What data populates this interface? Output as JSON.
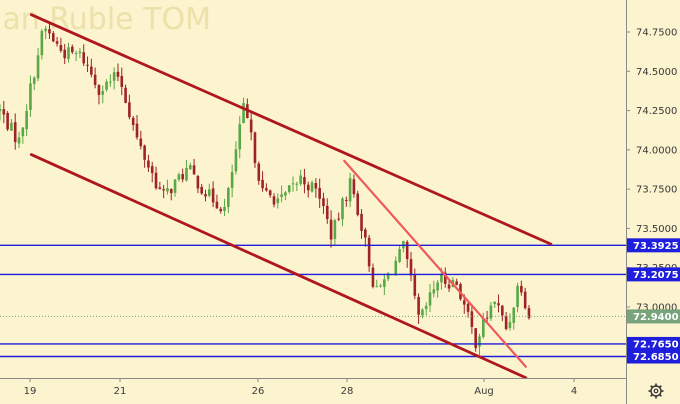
{
  "watermark": "ian Ruble TOM",
  "settings_icon": "gear-icon",
  "colors": {
    "background": "#fcf3cf",
    "candle_up": "#5aa845",
    "candle_down": "#9e2327",
    "channel": "#b0171d",
    "trendline": "#ee5a5a",
    "level": "#1e1edc",
    "current_price": "#78a47c"
  },
  "chart_data": {
    "type": "candlestick",
    "x_ticks": [
      "19",
      "21",
      "26",
      "28",
      "Aug",
      "4"
    ],
    "y_ticks": [
      "74.7500",
      "74.5000",
      "74.2500",
      "74.0000",
      "73.7500",
      "73.5000",
      "73.2500",
      "73.0000"
    ],
    "ylim": [
      72.52,
      74.95
    ],
    "grid": false,
    "horizontal_levels": [
      {
        "label": "73.3925",
        "value": 73.3925
      },
      {
        "label": "73.2075",
        "value": 73.2075
      },
      {
        "label": "72.7650",
        "value": 72.765
      },
      {
        "label": "72.6850",
        "value": 72.685
      }
    ],
    "current_price": {
      "label": "72.9400",
      "value": 72.94
    },
    "lines": [
      {
        "name": "channel-upper",
        "points": [
          [
            0.05,
            74.86
          ],
          [
            0.88,
            73.4
          ]
        ]
      },
      {
        "name": "channel-lower",
        "points": [
          [
            0.05,
            73.97
          ],
          [
            0.84,
            72.55
          ]
        ]
      },
      {
        "name": "trendline",
        "points": [
          [
            0.55,
            73.93
          ],
          [
            0.84,
            72.62
          ]
        ]
      }
    ],
    "key_prices": [
      [
        0.0,
        74.25
      ],
      [
        0.03,
        74.05
      ],
      [
        0.07,
        74.78
      ],
      [
        0.1,
        74.62
      ],
      [
        0.13,
        74.6
      ],
      [
        0.16,
        74.38
      ],
      [
        0.19,
        74.48
      ],
      [
        0.22,
        74.05
      ],
      [
        0.26,
        73.7
      ],
      [
        0.3,
        73.88
      ],
      [
        0.33,
        73.72
      ],
      [
        0.36,
        73.62
      ],
      [
        0.39,
        74.28
      ],
      [
        0.42,
        73.72
      ],
      [
        0.45,
        73.68
      ],
      [
        0.48,
        73.82
      ],
      [
        0.51,
        73.72
      ],
      [
        0.53,
        73.45
      ],
      [
        0.56,
        73.8
      ],
      [
        0.58,
        73.48
      ],
      [
        0.6,
        73.08
      ],
      [
        0.62,
        73.2
      ],
      [
        0.645,
        73.38
      ],
      [
        0.67,
        72.9
      ],
      [
        0.7,
        73.18
      ],
      [
        0.73,
        73.15
      ],
      [
        0.76,
        72.78
      ],
      [
        0.79,
        73.05
      ],
      [
        0.81,
        72.85
      ],
      [
        0.83,
        73.18
      ],
      [
        0.845,
        72.94
      ]
    ]
  }
}
